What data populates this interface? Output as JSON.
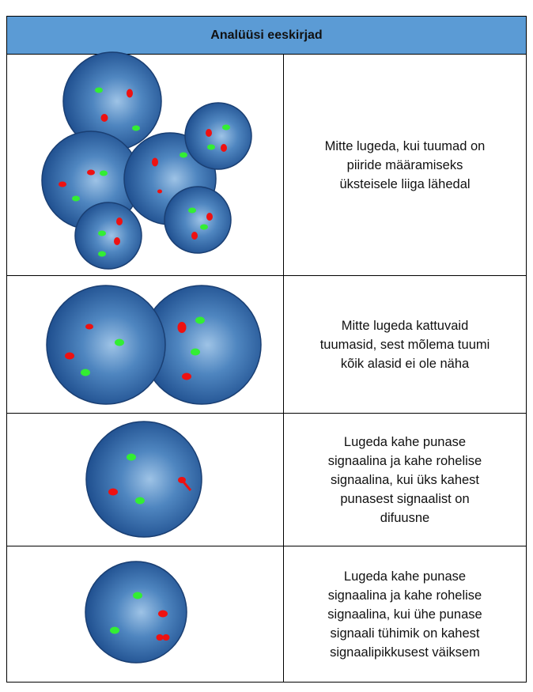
{
  "header": {
    "title": "Analüüsi eeskirjad"
  },
  "table": {
    "rows": [
      {
        "lines": [
          "Mitte lugeda, kui tuumad on",
          "piiride määramiseks",
          "üksteisele liiga lähedal"
        ]
      },
      {
        "lines": [
          "Mitte lugeda kattuvaid",
          "tuumasid, sest mõlema tuumi",
          "kõik alasid ei ole näha"
        ]
      },
      {
        "lines": [
          "Lugeda kahe punase",
          "signaalina ja kahe rohelise",
          "signaalina, kui üks kahest",
          "punasest signaalist on",
          "difuusne"
        ]
      },
      {
        "lines": [
          "Lugeda kahe punase",
          "signaalina ja kahe rohelise",
          "signaalina, kui ühe punase",
          "signaali tühimik on kahest",
          "signaalipikkusest väiksem"
        ]
      }
    ]
  }
}
